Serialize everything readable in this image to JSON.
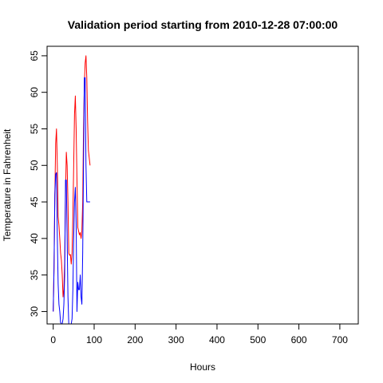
{
  "chart_data": {
    "type": "line",
    "title": "Validation period starting from 2010-12-28 07:00:00",
    "xlabel": "Hours",
    "ylabel": "Temperature in Fahrenheit",
    "xlim": [
      -15,
      745
    ],
    "ylim": [
      28.3,
      66.3
    ],
    "x_ticks": [
      0,
      100,
      200,
      300,
      400,
      500,
      600,
      700
    ],
    "y_ticks": [
      30,
      35,
      40,
      45,
      50,
      55,
      60,
      65
    ],
    "grid": false,
    "legend": "none",
    "series": [
      {
        "color": "#ff0000",
        "x": [
          0,
          2,
          4,
          6,
          8,
          10,
          12,
          14,
          16,
          18,
          20,
          22,
          24,
          26,
          28,
          30,
          32,
          34,
          36,
          38,
          40,
          42,
          44,
          46,
          48,
          50,
          52,
          54,
          56,
          58,
          60,
          62,
          64,
          66,
          68,
          70,
          72,
          74,
          76,
          78,
          80,
          82,
          84,
          86,
          88,
          90
        ],
        "y": [
          30,
          36,
          46,
          53,
          55,
          50,
          43,
          41.8,
          40,
          38,
          37,
          35,
          32,
          33,
          37,
          46,
          51.8,
          50,
          45,
          38,
          37.7,
          37.8,
          36.5,
          38,
          43,
          50,
          57,
          59.5,
          55,
          48,
          41.5,
          41,
          40.5,
          40.8,
          40,
          41,
          45,
          55,
          61,
          64,
          65,
          62,
          56,
          52,
          51,
          50
        ]
      },
      {
        "color": "#0000ff",
        "x": [
          0,
          2,
          4,
          6,
          8,
          10,
          12,
          14,
          16,
          18,
          20,
          22,
          24,
          26,
          28,
          30,
          32,
          34,
          36,
          38,
          40,
          42,
          44,
          46,
          48,
          50,
          52,
          54,
          56,
          58,
          60,
          62,
          64,
          66,
          68,
          70,
          72,
          74,
          76,
          78,
          80,
          82,
          84,
          86,
          88,
          90
        ],
        "y": [
          30,
          36,
          46,
          48.8,
          49,
          40,
          33.8,
          31,
          30,
          28.5,
          28.3,
          28.3,
          29,
          31,
          35,
          48,
          48,
          40,
          32,
          28.3,
          28.3,
          28.3,
          28.3,
          29,
          33,
          40,
          45,
          47,
          42,
          30,
          34,
          33,
          33,
          35,
          32,
          31,
          38,
          50,
          62,
          62,
          50,
          45,
          45,
          45,
          45,
          45
        ]
      }
    ]
  }
}
